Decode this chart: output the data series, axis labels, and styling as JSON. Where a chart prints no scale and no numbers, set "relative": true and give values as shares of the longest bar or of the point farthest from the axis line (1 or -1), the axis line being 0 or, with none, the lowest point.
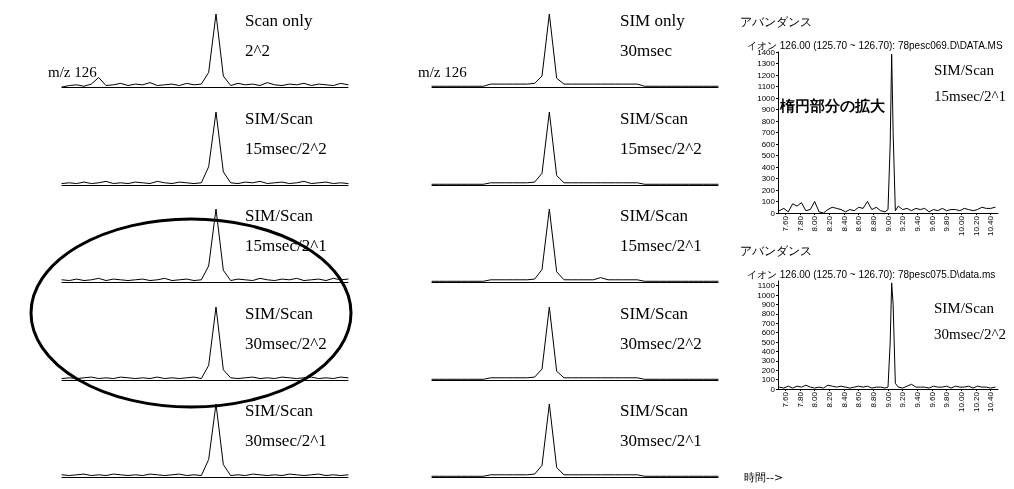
{
  "chart_data": [
    {
      "type": "line",
      "relative": true,
      "categories": [
        null,
        null,
        null,
        null,
        null,
        null,
        null,
        null,
        null,
        null,
        null,
        null,
        null,
        null,
        null,
        null,
        null,
        null,
        null,
        null,
        null,
        null,
        null,
        null,
        null,
        null,
        null,
        null,
        null,
        null,
        null,
        null,
        null,
        null,
        null,
        null,
        null,
        null,
        null,
        null
      ],
      "series": [
        {
          "color": "#000000",
          "values": [
            0,
            0.02,
            0.03,
            0.01,
            0.04,
            0.13,
            0.02,
            0.03,
            0.05,
            0.02,
            0.04,
            0.03,
            0.06,
            0.02,
            0.03,
            0.04,
            0.02,
            0.05,
            0.03,
            0.04,
            0.2,
            1,
            0.15,
            0.02,
            0.05,
            0.03,
            0.04,
            0.02,
            0.06,
            0.03,
            0.02,
            0.04,
            0.03,
            0.05,
            0.02,
            0.04,
            0.03,
            0.02,
            0.05,
            0.03
          ]
        }
      ],
      "annotations": [
        "m/z 126",
        "Scan only",
        "2^2"
      ]
    },
    {
      "type": "line",
      "relative": true,
      "categories": [
        null,
        null,
        null,
        null,
        null,
        null,
        null,
        null,
        null,
        null,
        null,
        null,
        null,
        null,
        null,
        null,
        null,
        null,
        null,
        null,
        null,
        null,
        null,
        null,
        null,
        null,
        null,
        null,
        null,
        null,
        null,
        null,
        null,
        null,
        null,
        null,
        null,
        null,
        null,
        null
      ],
      "series": [
        {
          "color": "#000000",
          "values": [
            0.02,
            0.03,
            0.02,
            0.04,
            0.02,
            0.03,
            0.05,
            0.02,
            0.03,
            0.02,
            0.04,
            0.03,
            0.02,
            0.05,
            0.03,
            0.02,
            0.04,
            0.03,
            0.02,
            0.03,
            0.25,
            1,
            0.18,
            0.03,
            0.02,
            0.04,
            0.03,
            0.05,
            0.02,
            0.03,
            0.04,
            0.02,
            0.03,
            0.05,
            0.02,
            0.03,
            0.04,
            0.02,
            0.03,
            0.02
          ]
        }
      ],
      "annotations": [
        "SIM/Scan",
        "15msec/2^2"
      ]
    },
    {
      "type": "line",
      "relative": true,
      "categories": [
        null,
        null,
        null,
        null,
        null,
        null,
        null,
        null,
        null,
        null,
        null,
        null,
        null,
        null,
        null,
        null,
        null,
        null,
        null,
        null,
        null,
        null,
        null,
        null,
        null,
        null,
        null,
        null,
        null,
        null,
        null,
        null,
        null,
        null,
        null,
        null,
        null,
        null,
        null,
        null
      ],
      "series": [
        {
          "color": "#000000",
          "values": [
            0.03,
            0.02,
            0.04,
            0.02,
            0.03,
            0.05,
            0.02,
            0.04,
            0.03,
            0.02,
            0.03,
            0.04,
            0.02,
            0.03,
            0.05,
            0.02,
            0.03,
            0.04,
            0.02,
            0.03,
            0.22,
            1,
            0.16,
            0.02,
            0.04,
            0.03,
            0.02,
            0.05,
            0.03,
            0.02,
            0.04,
            0.03,
            0.05,
            0.02,
            0.03,
            0.04,
            0.02,
            0.05,
            0.03,
            0.04
          ]
        }
      ],
      "annotations": [
        "SIM/Scan",
        "15msec/2^1"
      ]
    },
    {
      "type": "line",
      "relative": true,
      "categories": [
        null,
        null,
        null,
        null,
        null,
        null,
        null,
        null,
        null,
        null,
        null,
        null,
        null,
        null,
        null,
        null,
        null,
        null,
        null,
        null,
        null,
        null,
        null,
        null,
        null,
        null,
        null,
        null,
        null,
        null,
        null,
        null,
        null,
        null,
        null,
        null,
        null,
        null,
        null,
        null
      ],
      "series": [
        {
          "color": "#000000",
          "values": [
            0.02,
            0.03,
            0.02,
            0.03,
            0.04,
            0.02,
            0.03,
            0.02,
            0.04,
            0.03,
            0.02,
            0.03,
            0.02,
            0.04,
            0.02,
            0.03,
            0.02,
            0.03,
            0.04,
            0.02,
            0.2,
            1,
            0.14,
            0.03,
            0.02,
            0.03,
            0.04,
            0.02,
            0.03,
            0.02,
            0.04,
            0.03,
            0.02,
            0.03,
            0.04,
            0.02,
            0.03,
            0.02,
            0.04,
            0.03
          ]
        }
      ],
      "annotations": [
        "SIM/Scan",
        "30msec/2^2"
      ]
    },
    {
      "type": "line",
      "relative": true,
      "categories": [
        null,
        null,
        null,
        null,
        null,
        null,
        null,
        null,
        null,
        null,
        null,
        null,
        null,
        null,
        null,
        null,
        null,
        null,
        null,
        null,
        null,
        null,
        null,
        null,
        null,
        null,
        null,
        null,
        null,
        null,
        null,
        null,
        null,
        null,
        null,
        null,
        null,
        null,
        null,
        null
      ],
      "series": [
        {
          "color": "#000000",
          "values": [
            0.03,
            0.02,
            0.03,
            0.04,
            0.02,
            0.03,
            0.02,
            0.04,
            0.03,
            0.02,
            0.03,
            0.02,
            0.04,
            0.03,
            0.02,
            0.03,
            0.04,
            0.02,
            0.03,
            0.02,
            0.24,
            1,
            0.17,
            0.02,
            0.03,
            0.02,
            0.04,
            0.03,
            0.02,
            0.03,
            0.02,
            0.04,
            0.03,
            0.02,
            0.03,
            0.04,
            0.02,
            0.03,
            0.02,
            0.03
          ]
        }
      ],
      "annotations": [
        "SIM/Scan",
        "30msec/2^1"
      ]
    },
    {
      "type": "line",
      "relative": true,
      "categories": [
        null,
        null,
        null,
        null,
        null,
        null,
        null,
        null,
        null,
        null,
        null,
        null,
        null,
        null,
        null,
        null,
        null,
        null,
        null,
        null,
        null,
        null,
        null,
        null,
        null,
        null,
        null,
        null,
        null,
        null,
        null,
        null,
        null,
        null,
        null,
        null,
        null,
        null,
        null,
        null
      ],
      "series": [
        {
          "color": "#000000",
          "values": [
            0.01,
            0.01,
            0.01,
            0.01,
            0.01,
            0.01,
            0.01,
            0.01,
            0.04,
            0.04,
            0.04,
            0.04,
            0.04,
            0.04,
            0.05,
            0.15,
            1,
            0.12,
            0.04,
            0.04,
            0.04,
            0.04,
            0.04,
            0.04,
            0.04,
            0.04,
            0.04,
            0.04,
            0.04,
            0.01,
            0.01,
            0.01,
            0.01,
            0.01,
            0.01,
            0.01,
            0.01,
            0.01,
            0.01,
            0.01
          ]
        }
      ],
      "annotations": [
        "m/z 126",
        "SIM only",
        "30msec"
      ]
    },
    {
      "type": "line",
      "relative": true,
      "categories": [
        null,
        null,
        null,
        null,
        null,
        null,
        null,
        null,
        null,
        null,
        null,
        null,
        null,
        null,
        null,
        null,
        null,
        null,
        null,
        null,
        null,
        null,
        null,
        null,
        null,
        null,
        null,
        null,
        null,
        null,
        null,
        null,
        null,
        null,
        null,
        null,
        null,
        null,
        null,
        null
      ],
      "series": [
        {
          "color": "#000000",
          "values": [
            0.01,
            0.01,
            0.01,
            0.01,
            0.01,
            0.01,
            0.01,
            0.01,
            0.03,
            0.03,
            0.03,
            0.03,
            0.03,
            0.03,
            0.04,
            0.16,
            1,
            0.13,
            0.03,
            0.03,
            0.03,
            0.03,
            0.03,
            0.03,
            0.03,
            0.03,
            0.03,
            0.03,
            0.03,
            0.01,
            0.01,
            0.01,
            0.01,
            0.01,
            0.01,
            0.01,
            0.01,
            0.01,
            0.01,
            0.01
          ]
        }
      ],
      "annotations": [
        "SIM/Scan",
        "15msec/2^2"
      ]
    },
    {
      "type": "line",
      "relative": true,
      "categories": [
        null,
        null,
        null,
        null,
        null,
        null,
        null,
        null,
        null,
        null,
        null,
        null,
        null,
        null,
        null,
        null,
        null,
        null,
        null,
        null,
        null,
        null,
        null,
        null,
        null,
        null,
        null,
        null,
        null,
        null,
        null,
        null,
        null,
        null,
        null,
        null,
        null,
        null,
        null,
        null
      ],
      "series": [
        {
          "color": "#000000",
          "values": [
            0.01,
            0.01,
            0.01,
            0.01,
            0.01,
            0.01,
            0.01,
            0.01,
            0.03,
            0.03,
            0.03,
            0.03,
            0.03,
            0.03,
            0.04,
            0.17,
            1,
            0.14,
            0.03,
            0.03,
            0.03,
            0.03,
            0.03,
            0.06,
            0.03,
            0.03,
            0.03,
            0.03,
            0.03,
            0.01,
            0.01,
            0.01,
            0.01,
            0.01,
            0.01,
            0.01,
            0.01,
            0.01,
            0.01,
            0.01
          ]
        }
      ],
      "annotations": [
        "SIM/Scan",
        "15msec/2^1"
      ]
    },
    {
      "type": "line",
      "relative": true,
      "categories": [
        null,
        null,
        null,
        null,
        null,
        null,
        null,
        null,
        null,
        null,
        null,
        null,
        null,
        null,
        null,
        null,
        null,
        null,
        null,
        null,
        null,
        null,
        null,
        null,
        null,
        null,
        null,
        null,
        null,
        null,
        null,
        null,
        null,
        null,
        null,
        null,
        null,
        null,
        null,
        null
      ],
      "series": [
        {
          "color": "#000000",
          "values": [
            0.01,
            0.01,
            0.01,
            0.01,
            0.01,
            0.01,
            0.01,
            0.01,
            0.03,
            0.03,
            0.03,
            0.03,
            0.03,
            0.03,
            0.04,
            0.15,
            1,
            0.12,
            0.03,
            0.03,
            0.03,
            0.03,
            0.03,
            0.03,
            0.03,
            0.03,
            0.03,
            0.03,
            0.03,
            0.01,
            0.01,
            0.01,
            0.01,
            0.01,
            0.01,
            0.01,
            0.01,
            0.01,
            0.01,
            0.01
          ]
        }
      ],
      "annotations": [
        "SIM/Scan",
        "30msec/2^2"
      ]
    },
    {
      "type": "line",
      "relative": true,
      "categories": [
        null,
        null,
        null,
        null,
        null,
        null,
        null,
        null,
        null,
        null,
        null,
        null,
        null,
        null,
        null,
        null,
        null,
        null,
        null,
        null,
        null,
        null,
        null,
        null,
        null,
        null,
        null,
        null,
        null,
        null,
        null,
        null,
        null,
        null,
        null,
        null,
        null,
        null,
        null,
        null
      ],
      "series": [
        {
          "color": "#000000",
          "values": [
            0.01,
            0.01,
            0.01,
            0.01,
            0.01,
            0.01,
            0.01,
            0.01,
            0.03,
            0.03,
            0.03,
            0.03,
            0.03,
            0.03,
            0.04,
            0.16,
            1,
            0.13,
            0.03,
            0.03,
            0.03,
            0.03,
            0.03,
            0.03,
            0.03,
            0.03,
            0.03,
            0.03,
            0.03,
            0.01,
            0.01,
            0.01,
            0.01,
            0.01,
            0.01,
            0.01,
            0.01,
            0.01,
            0.01,
            0.01
          ]
        }
      ],
      "annotations": [
        "SIM/Scan",
        "30msec/2^1"
      ]
    },
    {
      "type": "line",
      "title": "イオン 126.00 (125.70 ~ 126.70): 78pesc069.D\\DATA.MS",
      "ylabel": "アバンダンス",
      "x": [
        7.52,
        7.58,
        7.64,
        7.7,
        7.76,
        7.82,
        7.88,
        7.94,
        8.0,
        8.06,
        8.12,
        8.18,
        8.24,
        8.3,
        8.36,
        8.42,
        8.48,
        8.54,
        8.6,
        8.66,
        8.72,
        8.78,
        8.84,
        8.9,
        8.96,
        9.0,
        9.03,
        9.05,
        9.07,
        9.1,
        9.14,
        9.2,
        9.26,
        9.32,
        9.38,
        9.44,
        9.5,
        9.56,
        9.62,
        9.68,
        9.74,
        9.8,
        9.86,
        9.92,
        9.98,
        10.04,
        10.1,
        10.16,
        10.22,
        10.28,
        10.34,
        10.4,
        10.46
      ],
      "xlim": [
        7.5,
        10.5
      ],
      "xticks": [
        {
          "value": 7.6,
          "label": "7.60"
        },
        {
          "value": 7.8,
          "label": "7.80"
        },
        {
          "value": 8,
          "label": "8.00"
        },
        {
          "value": 8.2,
          "label": "8.20"
        },
        {
          "value": 8.4,
          "label": "8.40"
        },
        {
          "value": 8.6,
          "label": "8.60"
        },
        {
          "value": 8.8,
          "label": "8.80"
        },
        {
          "value": 9,
          "label": "9.00"
        },
        {
          "value": 9.2,
          "label": "9.20"
        },
        {
          "value": 9.4,
          "label": "9.40"
        },
        {
          "value": 9.6,
          "label": "9.60"
        },
        {
          "value": 9.8,
          "label": "9.80"
        },
        {
          "value": 10,
          "label": "10.00"
        },
        {
          "value": 10.2,
          "label": "10.20"
        },
        {
          "value": 10.4,
          "label": "10.40"
        }
      ],
      "ylim": [
        0,
        1400
      ],
      "yticks": [
        0,
        100,
        200,
        300,
        400,
        500,
        600,
        700,
        800,
        900,
        1000,
        1100,
        1200,
        1300,
        1400
      ],
      "series": [
        {
          "color": "#000000",
          "values": [
            20,
            40,
            10,
            80,
            60,
            90,
            20,
            30,
            100,
            10,
            0,
            30,
            50,
            40,
            30,
            10,
            30,
            20,
            50,
            40,
            100,
            30,
            50,
            20,
            10,
            30,
            600,
            1380,
            700,
            20,
            60,
            30,
            40,
            20,
            40,
            30,
            40,
            10,
            30,
            20,
            40,
            20,
            30,
            30,
            20,
            40,
            30,
            20,
            30,
            50,
            40,
            40,
            50
          ]
        }
      ],
      "annotations": [
        "楕円部分の拡大",
        "SIM/Scan",
        "15msec/2^1"
      ]
    },
    {
      "type": "line",
      "title": "イオン 126.00 (125.70 ~ 126.70): 78pesc075.D\\data.ms",
      "ylabel": "アバンダンス",
      "xlabel": "時間-->",
      "x": [
        7.52,
        7.58,
        7.64,
        7.7,
        7.76,
        7.82,
        7.88,
        7.94,
        8.0,
        8.06,
        8.12,
        8.18,
        8.24,
        8.3,
        8.36,
        8.42,
        8.48,
        8.54,
        8.6,
        8.66,
        8.72,
        8.78,
        8.84,
        8.9,
        8.96,
        9.0,
        9.03,
        9.05,
        9.07,
        9.1,
        9.14,
        9.2,
        9.26,
        9.32,
        9.38,
        9.44,
        9.5,
        9.56,
        9.62,
        9.68,
        9.74,
        9.8,
        9.86,
        9.92,
        9.98,
        10.04,
        10.1,
        10.16,
        10.22,
        10.28,
        10.34,
        10.4,
        10.46
      ],
      "xlim": [
        7.5,
        10.5
      ],
      "xticks": [
        {
          "value": 7.6,
          "label": "7.60"
        },
        {
          "value": 7.8,
          "label": "7.80"
        },
        {
          "value": 8,
          "label": "8.00"
        },
        {
          "value": 8.2,
          "label": "8.20"
        },
        {
          "value": 8.4,
          "label": "8.40"
        },
        {
          "value": 8.6,
          "label": "8.60"
        },
        {
          "value": 8.8,
          "label": "8.80"
        },
        {
          "value": 9,
          "label": "9.00"
        },
        {
          "value": 9.2,
          "label": "9.20"
        },
        {
          "value": 9.4,
          "label": "9.40"
        },
        {
          "value": 9.6,
          "label": "9.60"
        },
        {
          "value": 9.8,
          "label": "9.80"
        },
        {
          "value": 10,
          "label": "10.00"
        },
        {
          "value": 10.2,
          "label": "10.20"
        },
        {
          "value": 10.4,
          "label": "10.40"
        }
      ],
      "ylim": [
        0,
        1150
      ],
      "yticks": [
        0,
        100,
        200,
        300,
        400,
        500,
        600,
        700,
        800,
        900,
        1000,
        1100
      ],
      "series": [
        {
          "color": "#000000",
          "values": [
            20,
            10,
            30,
            10,
            30,
            20,
            40,
            20,
            10,
            20,
            10,
            40,
            30,
            20,
            30,
            20,
            10,
            20,
            30,
            20,
            30,
            10,
            20,
            20,
            10,
            20,
            500,
            1130,
            900,
            60,
            20,
            10,
            30,
            50,
            20,
            20,
            20,
            10,
            30,
            20,
            20,
            30,
            10,
            30,
            20,
            20,
            30,
            10,
            30,
            20,
            20,
            10,
            20
          ]
        }
      ],
      "annotations": [
        "SIM/Scan",
        "30msec/2^2"
      ]
    }
  ]
}
